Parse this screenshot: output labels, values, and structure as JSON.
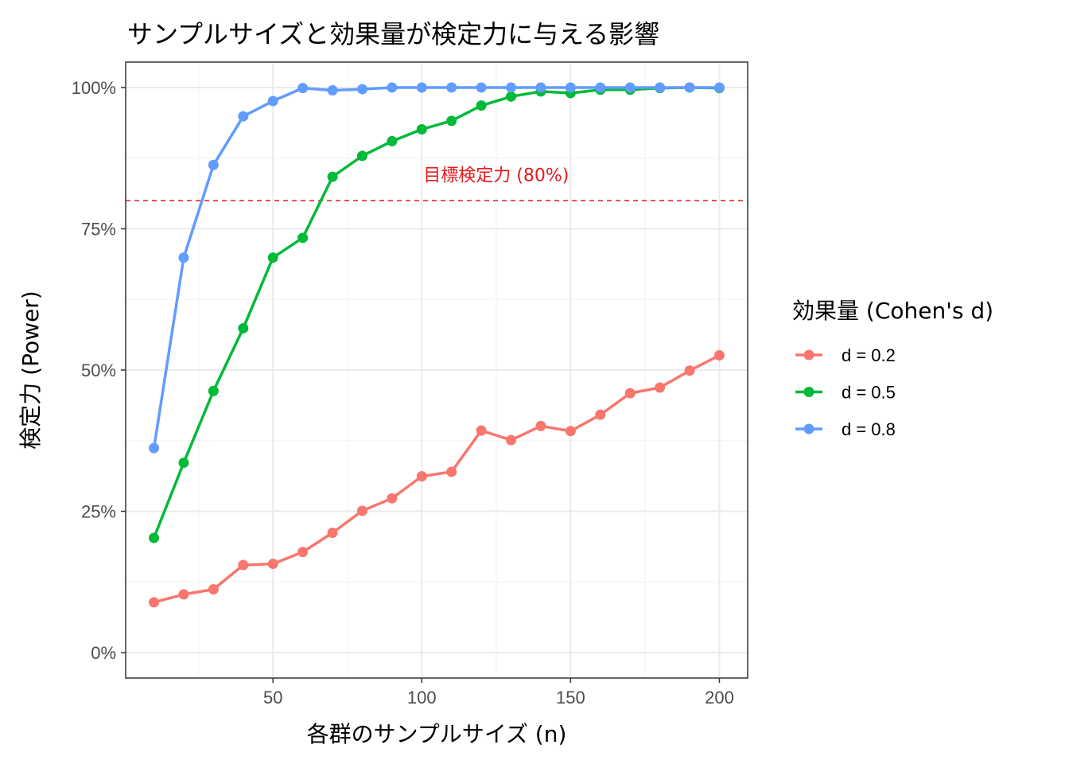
{
  "chart_data": {
    "type": "line",
    "title": "サンプルサイズと効果量が検定力に与える影響",
    "xlabel": "各群のサンプルサイズ (n)",
    "ylabel": "検定力 (Power)",
    "xlim": [
      0.5,
      209.5
    ],
    "ylim": [
      -0.045,
      1.045
    ],
    "x_ticks": [
      50,
      100,
      150,
      200
    ],
    "x_tick_labels": [
      "50",
      "100",
      "150",
      "200"
    ],
    "y_ticks": [
      0,
      0.25,
      0.5,
      0.75,
      1.0
    ],
    "y_tick_labels": [
      "0%",
      "25%",
      "50%",
      "75%",
      "100%"
    ],
    "grid": true,
    "x": [
      10,
      20,
      30,
      40,
      50,
      60,
      70,
      80,
      90,
      100,
      110,
      120,
      130,
      140,
      150,
      160,
      170,
      180,
      190,
      200
    ],
    "legend": {
      "title": "効果量 (Cohen's d)",
      "position": "right"
    },
    "series": [
      {
        "name": "d = 0.2",
        "color": "#F8766D",
        "values": [
          0.089,
          0.103,
          0.112,
          0.155,
          0.157,
          0.178,
          0.212,
          0.251,
          0.273,
          0.312,
          0.32,
          0.393,
          0.376,
          0.401,
          0.392,
          0.421,
          0.459,
          0.469,
          0.499,
          0.526
        ]
      },
      {
        "name": "d = 0.5",
        "color": "#00BA38",
        "values": [
          0.203,
          0.336,
          0.463,
          0.574,
          0.699,
          0.734,
          0.842,
          0.879,
          0.905,
          0.926,
          0.941,
          0.968,
          0.984,
          0.993,
          0.99,
          0.996,
          0.996,
          0.999,
          1.0,
          0.999
        ]
      },
      {
        "name": "d = 0.8",
        "color": "#619CFF",
        "values": [
          0.362,
          0.699,
          0.863,
          0.949,
          0.976,
          0.999,
          0.995,
          0.997,
          1.0,
          1.0,
          1.0,
          1.0,
          1.0,
          1.0,
          1.0,
          1.0,
          1.0,
          1.0,
          1.0,
          1.0
        ]
      }
    ],
    "reference_line": {
      "y": 0.8,
      "color": "#E41A1C",
      "style": "dashed",
      "label": "目標検定力 (80%)",
      "label_x": 125,
      "label_y": 0.846
    }
  }
}
